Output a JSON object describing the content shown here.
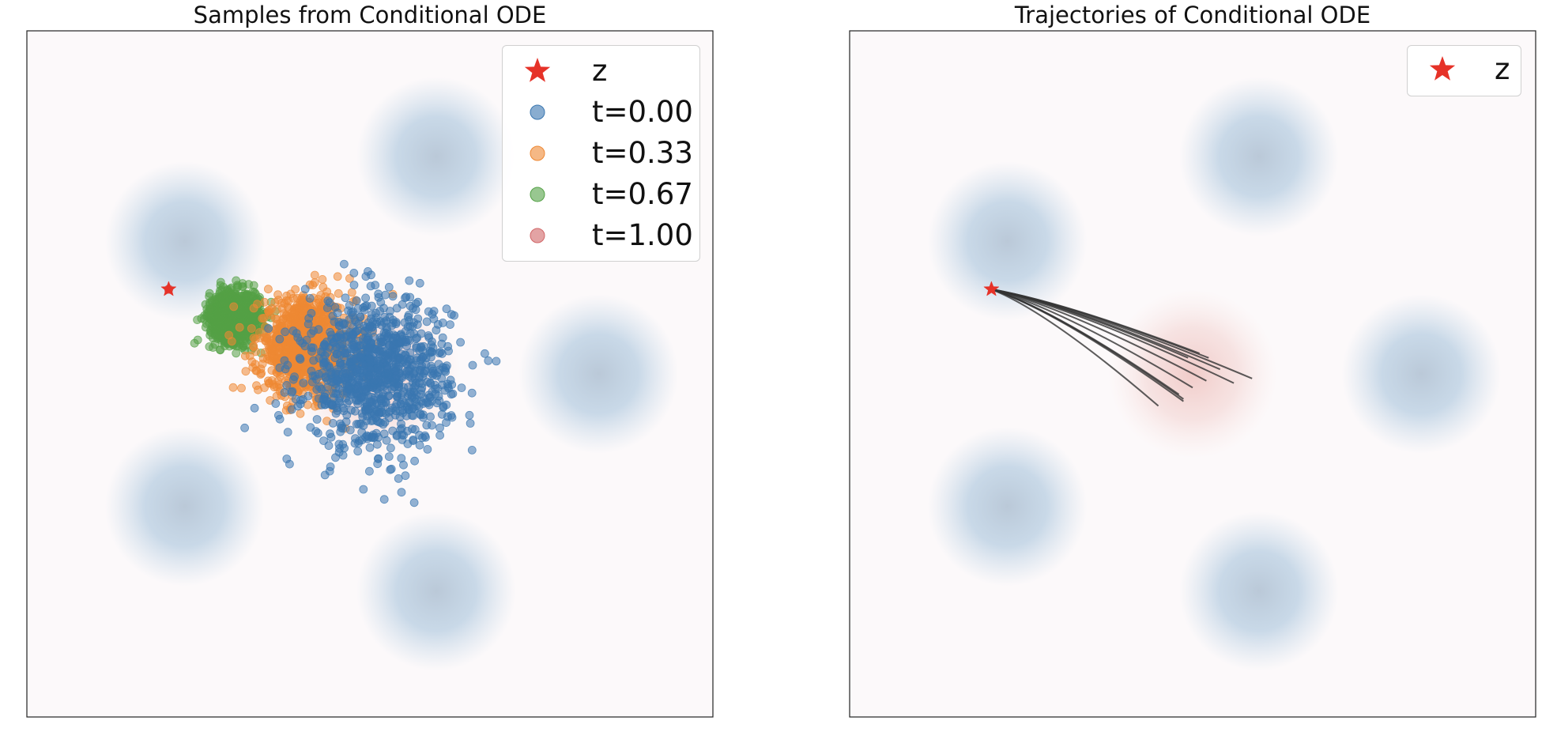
{
  "colors": {
    "star": "#e63228",
    "t0": "#3a77b0",
    "t033": "#ee8833",
    "t067": "#54a146",
    "t1": "#d16667",
    "trajectory": "#333333",
    "density_blue": "#a9c4dc",
    "density_red": "#f0c9c6",
    "background": "#fcf9fa"
  },
  "chart_data": [
    {
      "type": "scatter",
      "title": "Samples from Conditional ODE",
      "xlabel": "",
      "ylabel": "",
      "xlim": [
        -15,
        15
      ],
      "ylim": [
        -15,
        15
      ],
      "grid": false,
      "legend_position": "top-right",
      "background_density": {
        "source_modes": [
          [
            -8.1,
            5.8
          ],
          [
            2.9,
            9.5
          ],
          [
            10.0,
            0.0
          ],
          [
            2.9,
            -9.5
          ],
          [
            -8.1,
            -5.8
          ]
        ],
        "source_std": 1.7,
        "target_mean": [
          0.3,
          0.0
        ],
        "target_std": 1.8
      },
      "conditioning_point": {
        "label": "z",
        "x": -8.8,
        "y": 3.7,
        "marker": "star"
      },
      "series": [
        {
          "name": "t=0.00",
          "center": [
            0.3,
            0.0
          ],
          "std": 1.6,
          "count": 1000
        },
        {
          "name": "t=0.33",
          "center": [
            -2.8,
            1.2
          ],
          "std": 1.05,
          "count": 1000
        },
        {
          "name": "t=0.67",
          "center": [
            -5.9,
            2.5
          ],
          "std": 0.55,
          "count": 1000
        },
        {
          "name": "t=1.00",
          "center": [
            -8.8,
            3.7
          ],
          "std": 0.0,
          "count": 1000
        }
      ]
    },
    {
      "type": "line",
      "title": "Trajectories of Conditional ODE",
      "xlabel": "",
      "ylabel": "",
      "xlim": [
        -15,
        15
      ],
      "ylim": [
        -15,
        15
      ],
      "grid": false,
      "legend_position": "top-right",
      "background_density": {
        "source_modes": [
          [
            -8.1,
            5.8
          ],
          [
            2.9,
            9.5
          ],
          [
            10.0,
            0.0
          ],
          [
            2.9,
            -9.5
          ],
          [
            -8.1,
            -5.8
          ]
        ],
        "source_std": 1.7,
        "target_mean": [
          0.0,
          0.0
        ],
        "target_std": 1.8
      },
      "conditioning_point": {
        "label": "z",
        "x": -8.8,
        "y": 3.7,
        "marker": "star"
      },
      "trajectories": [
        {
          "start": [
            2.6,
            -0.2
          ],
          "end": [
            -8.8,
            3.7
          ]
        },
        {
          "start": [
            1.8,
            -0.4
          ],
          "end": [
            -8.8,
            3.7
          ]
        },
        {
          "start": [
            0.7,
            0.7
          ],
          "end": [
            -8.8,
            3.7
          ]
        },
        {
          "start": [
            0.3,
            0.9
          ],
          "end": [
            -8.8,
            3.7
          ]
        },
        {
          "start": [
            0.6,
            -0.3
          ],
          "end": [
            -8.8,
            3.7
          ]
        },
        {
          "start": [
            0.0,
            -0.6
          ],
          "end": [
            -8.8,
            3.7
          ]
        },
        {
          "start": [
            -0.6,
            -0.9
          ],
          "end": [
            -8.8,
            3.7
          ]
        },
        {
          "start": [
            -0.4,
            -1.1
          ],
          "end": [
            -8.8,
            3.7
          ]
        },
        {
          "start": [
            -0.4,
            -1.2
          ],
          "end": [
            -8.8,
            3.7
          ]
        },
        {
          "start": [
            -1.5,
            -1.4
          ],
          "end": [
            -8.8,
            3.7
          ]
        },
        {
          "start": [
            -0.2,
            0.7
          ],
          "end": [
            -8.8,
            3.7
          ]
        },
        {
          "start": [
            1.2,
            0.2
          ],
          "end": [
            -8.8,
            3.7
          ]
        }
      ]
    }
  ]
}
